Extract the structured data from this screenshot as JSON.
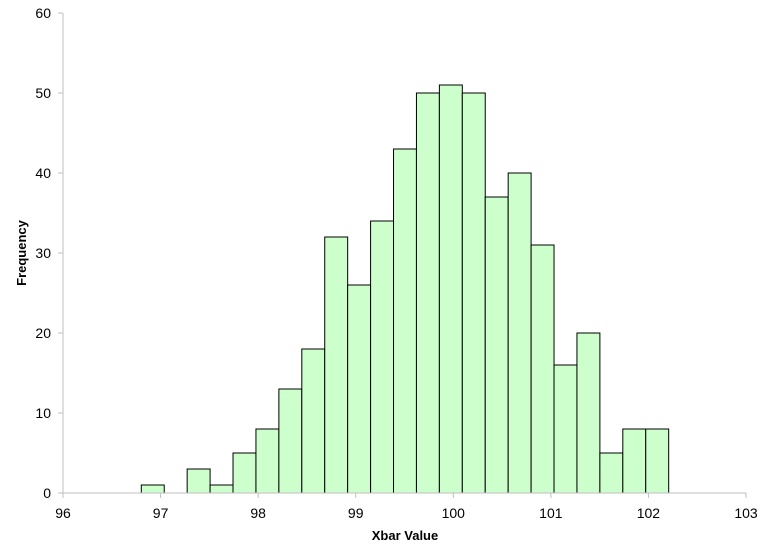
{
  "chart_data": {
    "type": "bar",
    "title": "",
    "xlabel": "Xbar Value",
    "ylabel": "Frequency",
    "xlim": [
      96,
      103
    ],
    "ylim": [
      0,
      60
    ],
    "x_ticks": [
      "96",
      "97",
      "98",
      "99",
      "100",
      "101",
      "102",
      "103"
    ],
    "y_ticks": [
      "0",
      "10",
      "20",
      "30",
      "40",
      "50",
      "60"
    ],
    "bin_width": 0.235,
    "bin_centers": [
      96.92,
      97.155,
      97.39,
      97.625,
      97.86,
      98.095,
      98.33,
      98.565,
      98.8,
      99.035,
      99.27,
      99.505,
      99.74,
      99.975,
      100.21,
      100.445,
      100.68,
      100.915,
      101.15,
      101.385,
      101.62,
      101.855,
      102.09
    ],
    "values": [
      1,
      0,
      3,
      1,
      5,
      8,
      13,
      18,
      32,
      26,
      34,
      43,
      50,
      51,
      50,
      37,
      40,
      31,
      16,
      20,
      5,
      8,
      8
    ],
    "bar_color": "#ccffcc",
    "bar_edge_color": "#000000",
    "grid": false,
    "legend": "none"
  }
}
